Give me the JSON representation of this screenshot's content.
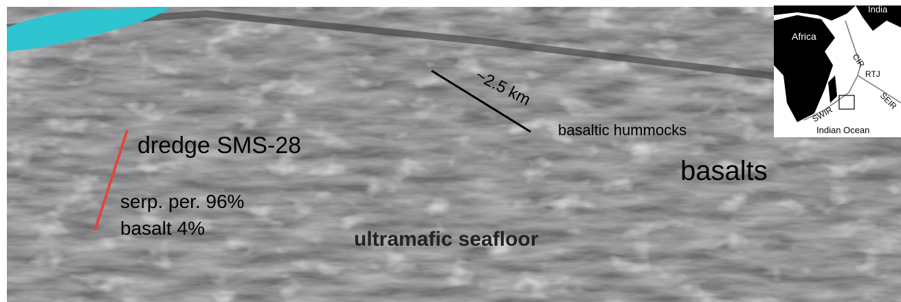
{
  "annotations": {
    "dredge": "dredge SMS-28",
    "composition": [
      "serp. per. 96%",
      "basalt 4%"
    ],
    "scale": "~2.5 km",
    "hummocks": "basaltic hummocks",
    "basalts": "basalts",
    "ultramafic": "ultramafic seafloor"
  },
  "inset": {
    "labels": {
      "india": "India",
      "africa": "Africa",
      "cir": "CIR",
      "rtj": "RTJ",
      "seir": "SEIR",
      "swir": "SWIR",
      "ocean": "Indian Ocean"
    }
  }
}
